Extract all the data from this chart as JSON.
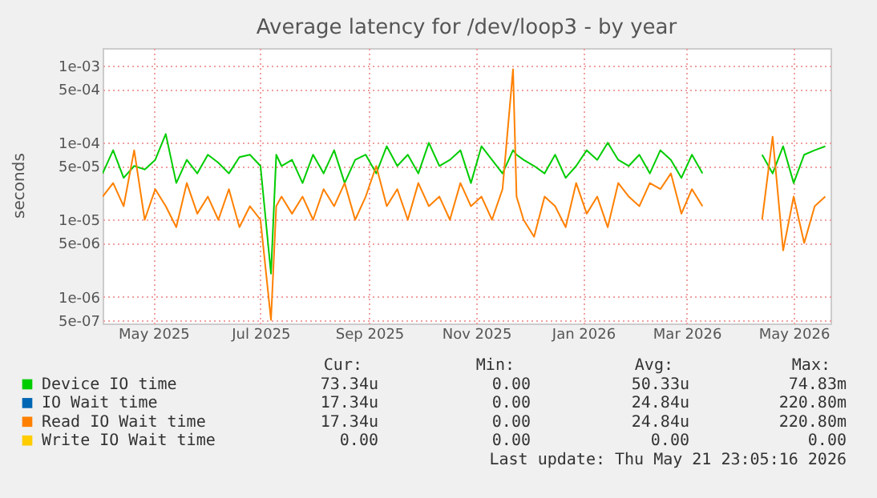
{
  "chart_data": {
    "type": "line",
    "title": "Average latency for /dev/loop3 - by year",
    "ylabel": "seconds",
    "x": [
      "2025-04-02",
      "2025-04-08",
      "2025-04-14",
      "2025-04-20",
      "2025-04-26",
      "2025-05-02",
      "2025-05-08",
      "2025-05-14",
      "2025-05-20",
      "2025-05-26",
      "2025-06-01",
      "2025-06-07",
      "2025-06-13",
      "2025-06-19",
      "2025-06-25",
      "2025-07-01",
      "2025-07-07",
      "2025-07-10",
      "2025-07-13",
      "2025-07-19",
      "2025-07-25",
      "2025-07-31",
      "2025-08-06",
      "2025-08-12",
      "2025-08-18",
      "2025-08-24",
      "2025-08-30",
      "2025-09-05",
      "2025-09-11",
      "2025-09-17",
      "2025-09-23",
      "2025-09-29",
      "2025-10-05",
      "2025-10-11",
      "2025-10-17",
      "2025-10-23",
      "2025-10-29",
      "2025-11-04",
      "2025-11-10",
      "2025-11-16",
      "2025-11-22",
      "2025-11-24",
      "2025-11-28",
      "2025-12-04",
      "2025-12-10",
      "2025-12-16",
      "2025-12-22",
      "2025-12-28",
      "2026-01-03",
      "2026-01-09",
      "2026-01-15",
      "2026-01-21",
      "2026-01-27",
      "2026-02-02",
      "2026-02-08",
      "2026-02-14",
      "2026-02-20",
      "2026-02-26",
      "2026-03-04",
      "2026-03-10",
      "2026-03-20",
      "2026-04-13",
      "2026-04-19",
      "2026-04-25",
      "2026-05-01",
      "2026-05-07",
      "2026-05-13",
      "2026-05-19"
    ],
    "series": [
      {
        "name": "Device IO time",
        "color": "#00cc00",
        "values": [
          4e-05,
          8e-05,
          3.5e-05,
          5e-05,
          4.5e-05,
          6e-05,
          0.00013,
          3e-05,
          6e-05,
          4e-05,
          7e-05,
          5.5e-05,
          4e-05,
          6.5e-05,
          7e-05,
          5e-05,
          2e-06,
          7e-05,
          5e-05,
          6e-05,
          3e-05,
          7e-05,
          4e-05,
          8e-05,
          3e-05,
          6e-05,
          7e-05,
          4e-05,
          9e-05,
          5e-05,
          7e-05,
          4e-05,
          0.0001,
          5e-05,
          6e-05,
          8e-05,
          3e-05,
          9e-05,
          6e-05,
          4e-05,
          8e-05,
          7e-05,
          6e-05,
          5e-05,
          4e-05,
          7e-05,
          3.5e-05,
          5e-05,
          8e-05,
          6e-05,
          0.0001,
          6e-05,
          5e-05,
          7e-05,
          4e-05,
          8e-05,
          6e-05,
          3.5e-05,
          7e-05,
          4e-05,
          null,
          7e-05,
          4e-05,
          9e-05,
          3e-05,
          7e-05,
          8e-05,
          9e-05
        ]
      },
      {
        "name": "IO Wait time",
        "color": "#0066b3",
        "values": [
          null,
          null,
          null,
          null,
          null,
          null,
          null,
          null,
          null,
          null,
          null,
          null,
          null,
          null,
          null,
          null,
          null,
          null,
          null,
          null,
          null,
          null,
          null,
          null,
          null,
          null,
          null,
          null,
          null,
          null,
          null,
          null,
          null,
          null,
          null,
          null,
          null,
          null,
          null,
          null,
          null,
          null,
          null,
          null,
          null,
          null,
          null,
          null,
          null,
          null,
          null,
          null,
          null,
          null,
          null,
          null,
          null,
          null,
          null,
          null,
          null,
          null,
          null,
          null,
          null,
          null,
          null,
          null
        ]
      },
      {
        "name": "Read IO Wait time",
        "color": "#ff8000",
        "values": [
          2e-05,
          3e-05,
          1.5e-05,
          8e-05,
          1e-05,
          2.5e-05,
          1.5e-05,
          8e-06,
          3e-05,
          1.2e-05,
          2e-05,
          1e-05,
          2.5e-05,
          8e-06,
          1.5e-05,
          1e-05,
          5e-07,
          1.5e-05,
          2e-05,
          1.2e-05,
          2e-05,
          1e-05,
          2.5e-05,
          1.5e-05,
          3e-05,
          1e-05,
          2e-05,
          5e-05,
          1.5e-05,
          2.5e-05,
          1e-05,
          3e-05,
          1.5e-05,
          2e-05,
          1e-05,
          3e-05,
          1.5e-05,
          2e-05,
          1e-05,
          2.5e-05,
          0.0009,
          2e-05,
          1e-05,
          6e-06,
          2e-05,
          1.5e-05,
          8e-06,
          3e-05,
          1.2e-05,
          2e-05,
          8e-06,
          3e-05,
          2e-05,
          1.5e-05,
          3e-05,
          2.5e-05,
          4e-05,
          1.2e-05,
          2.5e-05,
          1.5e-05,
          null,
          1e-05,
          0.00012,
          4e-06,
          2e-05,
          5e-06,
          1.5e-05,
          2e-05
        ]
      },
      {
        "name": "Write IO Wait time",
        "color": "#ffcc00",
        "values": [
          null,
          null,
          null,
          null,
          null,
          null,
          null,
          null,
          null,
          null,
          null,
          null,
          null,
          null,
          null,
          null,
          null,
          null,
          null,
          null,
          null,
          null,
          null,
          null,
          null,
          null,
          null,
          null,
          null,
          null,
          null,
          null,
          null,
          null,
          null,
          null,
          null,
          null,
          null,
          null,
          null,
          null,
          null,
          null,
          null,
          null,
          null,
          null,
          null,
          null,
          null,
          null,
          null,
          null,
          null,
          null,
          null,
          null,
          null,
          null,
          null,
          null,
          null,
          null,
          null,
          null,
          null,
          null
        ]
      }
    ],
    "xlim": [
      "2025-04-02",
      "2026-05-22"
    ],
    "xticks": [
      {
        "value": "2025-05-01",
        "label": "May 2025"
      },
      {
        "value": "2025-07-01",
        "label": "Jul 2025"
      },
      {
        "value": "2025-09-01",
        "label": "Sep 2025"
      },
      {
        "value": "2025-11-01",
        "label": "Nov 2025"
      },
      {
        "value": "2026-01-01",
        "label": "Jan 2026"
      },
      {
        "value": "2026-03-01",
        "label": "Mar 2026"
      },
      {
        "value": "2026-05-01",
        "label": "May 2026"
      }
    ],
    "ylim": [
      4.5e-07,
      0.0017
    ],
    "log": "y",
    "yticks": [
      {
        "value": 5e-07,
        "label": "5e-07"
      },
      {
        "value": 1e-06,
        "label": "1e-06"
      },
      {
        "value": 5e-06,
        "label": "5e-06"
      },
      {
        "value": 1e-05,
        "label": "1e-05"
      },
      {
        "value": 5e-05,
        "label": "5e-05"
      },
      {
        "value": 0.0001,
        "label": "1e-04"
      },
      {
        "value": 0.0005,
        "label": "5e-04"
      },
      {
        "value": 0.001,
        "label": "1e-03"
      }
    ],
    "grid": true,
    "legend": "bottom",
    "annotations": [
      "Cur:",
      "Min:",
      "Avg:",
      "Max:",
      "73.34u",
      "0.00",
      "50.33u",
      "74.83m",
      "17.34u",
      "0.00",
      "24.84u",
      "220.80m",
      "17.34u",
      "0.00",
      "24.84u",
      "220.80m",
      "0.00",
      "0.00",
      "0.00",
      "0.00",
      "Last update: Thu May 21 23:05:16 2026"
    ]
  }
}
